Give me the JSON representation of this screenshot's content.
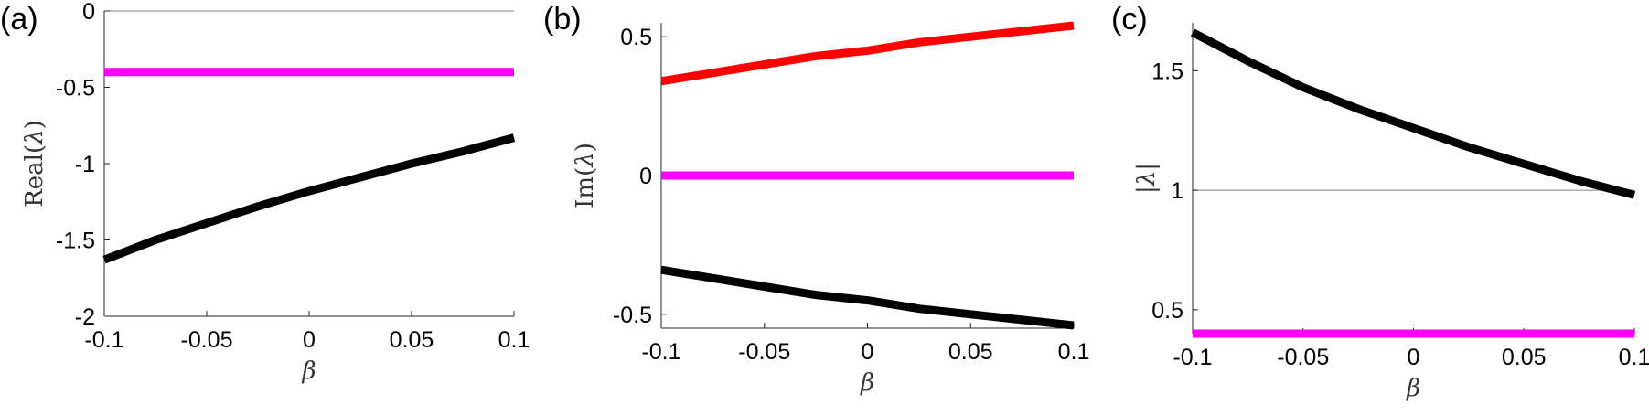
{
  "chart_data": [
    {
      "type": "line",
      "panel_label": "(a)",
      "xlabel": "β",
      "ylabel_text": "Real(",
      "ylabel_symbol": "λ",
      "ylabel_close": ")",
      "xlim": [
        -0.1,
        0.1
      ],
      "ylim": [
        -2,
        0
      ],
      "xticks": [
        -0.1,
        -0.05,
        0,
        0.05,
        0.1
      ],
      "xtick_labels": [
        "-0.1",
        "-0.05",
        "0",
        "0.05",
        "0.1"
      ],
      "yticks": [
        0,
        -0.5,
        -1,
        -1.5,
        -2
      ],
      "ytick_labels": [
        "0",
        "-0.5",
        "-1",
        "-1.5",
        "-2"
      ],
      "reference_line_y": 0,
      "x": [
        -0.1,
        -0.075,
        -0.05,
        -0.025,
        0,
        0.025,
        0.05,
        0.075,
        0.1
      ],
      "series": [
        {
          "color": "#ff00ff",
          "values": [
            -0.4,
            -0.4,
            -0.4,
            -0.4,
            -0.4,
            -0.4,
            -0.4,
            -0.4,
            -0.4
          ]
        },
        {
          "color": "#000000",
          "values": [
            -1.63,
            -1.5,
            -1.39,
            -1.28,
            -1.18,
            -1.09,
            -1.0,
            -0.92,
            -0.83
          ]
        }
      ]
    },
    {
      "type": "line",
      "panel_label": "(b)",
      "xlabel": "β",
      "ylabel_text": "Im(",
      "ylabel_symbol": "λ",
      "ylabel_close": ")",
      "xlim": [
        -0.1,
        0.1
      ],
      "ylim": [
        -0.55,
        0.55
      ],
      "xticks": [
        -0.1,
        -0.05,
        0,
        0.05,
        0.1
      ],
      "xtick_labels": [
        "-0.1",
        "-0.05",
        "0",
        "0.05",
        "0.1"
      ],
      "yticks": [
        0.5,
        0,
        -0.5
      ],
      "ytick_labels": [
        "0.5",
        "0",
        "-0.5"
      ],
      "x": [
        -0.1,
        -0.075,
        -0.05,
        -0.025,
        0,
        0.025,
        0.05,
        0.075,
        0.1
      ],
      "series": [
        {
          "color": "#ff0000",
          "values": [
            0.34,
            0.37,
            0.4,
            0.43,
            0.45,
            0.48,
            0.5,
            0.52,
            0.54
          ]
        },
        {
          "color": "#ff00ff",
          "values": [
            0,
            0,
            0,
            0,
            0,
            0,
            0,
            0,
            0
          ]
        },
        {
          "color": "#000000",
          "values": [
            -0.34,
            -0.37,
            -0.4,
            -0.43,
            -0.45,
            -0.48,
            -0.5,
            -0.52,
            -0.54
          ]
        }
      ]
    },
    {
      "type": "line",
      "panel_label": "(c)",
      "xlabel": "β",
      "ylabel_text": "",
      "ylabel_symbol": "|λ|",
      "ylabel_close": "",
      "xlim": [
        -0.1,
        0.1
      ],
      "ylim": [
        0.4,
        1.7
      ],
      "xticks": [
        -0.1,
        -0.05,
        0,
        0.05,
        0.1
      ],
      "xtick_labels": [
        "-0.1",
        "-0.05",
        "0",
        "0.05",
        "0.1"
      ],
      "yticks": [
        1.5,
        1,
        0.5
      ],
      "ytick_labels": [
        "1.5",
        "1",
        "0.5"
      ],
      "reference_line_y": 1,
      "x": [
        -0.1,
        -0.075,
        -0.05,
        -0.025,
        0,
        0.025,
        0.05,
        0.075,
        0.1
      ],
      "series": [
        {
          "color": "#000000",
          "values": [
            1.66,
            1.54,
            1.43,
            1.34,
            1.26,
            1.18,
            1.11,
            1.04,
            0.98
          ]
        },
        {
          "color": "#ff00ff",
          "values": [
            0.4,
            0.4,
            0.4,
            0.4,
            0.4,
            0.4,
            0.4,
            0.4,
            0.4
          ]
        }
      ]
    }
  ]
}
